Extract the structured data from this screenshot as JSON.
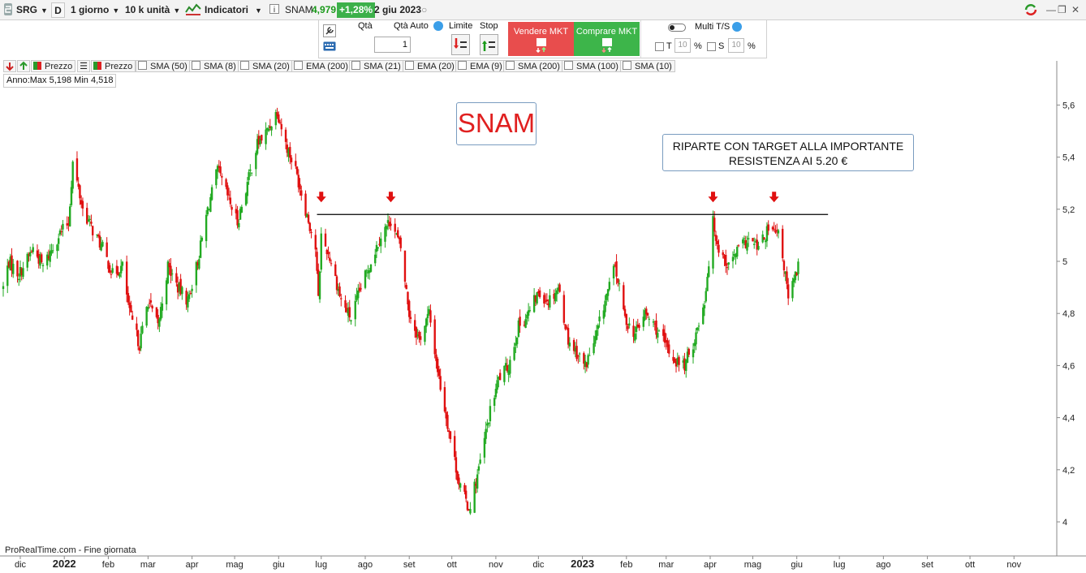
{
  "toolbar": {
    "symbol": "SRG",
    "d_label": "D",
    "timeframe": "1 giorno",
    "units": "10 k unità",
    "indicators": "Indicatori",
    "info_icon": "info-icon",
    "instrument": "SNAM",
    "last_price": "4,979",
    "change": "+1,28%",
    "date": "2 giu 2023"
  },
  "order": {
    "qty_label": "Qtà",
    "qty_auto_label": "Qtà Auto",
    "qty_value": "1",
    "limit_label": "Limite",
    "stop_label": "Stop",
    "sell_label": "Vendere MKT",
    "buy_label": "Comprare MKT",
    "multi_label": "Multi T/S",
    "t_label": "T",
    "t_value": "10",
    "t_unit": "%",
    "s_label": "S",
    "s_value": "10",
    "s_unit": "%"
  },
  "legend": {
    "items": [
      "Prezzo",
      "Prezzo",
      "SMA (50)",
      "SMA (8)",
      "SMA (20)",
      "EMA (200)",
      "SMA (21)",
      "EMA (20)",
      "EMA (9)",
      "SMA (200)",
      "SMA (100)",
      "SMA (10)"
    ]
  },
  "stats": "Anno:Max 5,198 Min 4,518",
  "footer": "ProRealTime.com - Fine giornata",
  "annotations": {
    "title": "SNAM",
    "note_line1": "RIPARTE CON TARGET ALLA IMPORTANTE",
    "note_line2": "RESISTENZA AI 5.20 €"
  },
  "colors": {
    "up": "#22aa22",
    "down": "#e01010",
    "marker": "#e01010",
    "accent": "#e02020"
  },
  "chart_data": {
    "type": "candlestick",
    "y_ticks": [
      "5,6",
      "5,4",
      "5,2",
      "5",
      "4,8",
      "4,6",
      "4,4",
      "4,2",
      "4"
    ],
    "y_tick_values": [
      5.6,
      5.4,
      5.2,
      5.0,
      4.8,
      4.6,
      4.4,
      4.2,
      4.0
    ],
    "ylim": [
      3.93,
      5.72
    ],
    "x_ticks": [
      "dic",
      "2022",
      "feb",
      "mar",
      "apr",
      "mag",
      "giu",
      "lug",
      "ago",
      "set",
      "ott",
      "nov",
      "dic",
      "2023",
      "feb",
      "mar",
      "apr",
      "mag",
      "giu",
      "lug",
      "ago",
      "set",
      "ott",
      "nov"
    ],
    "x_bold": [
      "2022",
      "2023"
    ],
    "resistance": {
      "level": 5.18,
      "from": "2022-06-28",
      "to": "2023-06-23"
    },
    "markers": [
      "2022-07-01",
      "2022-08-19",
      "2023-04-03",
      "2023-05-16"
    ],
    "price_path": [
      [
        "2021-11-19",
        4.9
      ],
      [
        "2021-11-23",
        5.0
      ],
      [
        "2021-11-30",
        4.95
      ],
      [
        "2021-12-10",
        5.05
      ],
      [
        "2021-12-17",
        4.98
      ],
      [
        "2021-12-28",
        5.1
      ],
      [
        "2022-01-04",
        5.15
      ],
      [
        "2022-01-07",
        5.38
      ],
      [
        "2022-01-14",
        5.2
      ],
      [
        "2022-01-21",
        5.12
      ],
      [
        "2022-01-28",
        5.05
      ],
      [
        "2022-02-04",
        4.95
      ],
      [
        "2022-02-11",
        4.98
      ],
      [
        "2022-02-16",
        4.8
      ],
      [
        "2022-02-23",
        4.68
      ],
      [
        "2022-03-01",
        4.85
      ],
      [
        "2022-03-08",
        4.75
      ],
      [
        "2022-03-15",
        4.98
      ],
      [
        "2022-03-22",
        4.9
      ],
      [
        "2022-03-29",
        4.85
      ],
      [
        "2022-04-05",
        5.0
      ],
      [
        "2022-04-12",
        5.2
      ],
      [
        "2022-04-19",
        5.35
      ],
      [
        "2022-04-26",
        5.25
      ],
      [
        "2022-05-03",
        5.15
      ],
      [
        "2022-05-10",
        5.3
      ],
      [
        "2022-05-17",
        5.45
      ],
      [
        "2022-05-24",
        5.5
      ],
      [
        "2022-05-31",
        5.58
      ],
      [
        "2022-06-06",
        5.45
      ],
      [
        "2022-06-13",
        5.35
      ],
      [
        "2022-06-20",
        5.2
      ],
      [
        "2022-06-27",
        5.05
      ],
      [
        "2022-06-29",
        4.85
      ],
      [
        "2022-07-01",
        5.1
      ],
      [
        "2022-07-08",
        5.0
      ],
      [
        "2022-07-15",
        4.85
      ],
      [
        "2022-07-22",
        4.78
      ],
      [
        "2022-07-29",
        4.9
      ],
      [
        "2022-08-05",
        5.0
      ],
      [
        "2022-08-12",
        5.1
      ],
      [
        "2022-08-19",
        5.16
      ],
      [
        "2022-08-26",
        5.05
      ],
      [
        "2022-09-01",
        4.8
      ],
      [
        "2022-09-08",
        4.7
      ],
      [
        "2022-09-15",
        4.8
      ],
      [
        "2022-09-22",
        4.55
      ],
      [
        "2022-09-29",
        4.35
      ],
      [
        "2022-10-06",
        4.15
      ],
      [
        "2022-10-13",
        4.05
      ],
      [
        "2022-10-20",
        4.2
      ],
      [
        "2022-10-27",
        4.4
      ],
      [
        "2022-11-03",
        4.55
      ],
      [
        "2022-11-10",
        4.6
      ],
      [
        "2022-11-17",
        4.75
      ],
      [
        "2022-11-24",
        4.8
      ],
      [
        "2022-12-01",
        4.88
      ],
      [
        "2022-12-08",
        4.85
      ],
      [
        "2022-12-15",
        4.9
      ],
      [
        "2022-12-22",
        4.7
      ],
      [
        "2023-01-03",
        4.6
      ],
      [
        "2023-01-10",
        4.7
      ],
      [
        "2023-01-17",
        4.85
      ],
      [
        "2023-01-24",
        4.98
      ],
      [
        "2023-01-31",
        4.78
      ],
      [
        "2023-02-07",
        4.72
      ],
      [
        "2023-02-14",
        4.8
      ],
      [
        "2023-02-21",
        4.75
      ],
      [
        "2023-02-28",
        4.68
      ],
      [
        "2023-03-07",
        4.62
      ],
      [
        "2023-03-14",
        4.6
      ],
      [
        "2023-03-21",
        4.7
      ],
      [
        "2023-03-28",
        4.85
      ],
      [
        "2023-04-03",
        5.15
      ],
      [
        "2023-04-07",
        5.05
      ],
      [
        "2023-04-14",
        4.98
      ],
      [
        "2023-04-21",
        5.05
      ],
      [
        "2023-04-28",
        5.08
      ],
      [
        "2023-05-05",
        5.05
      ],
      [
        "2023-05-12",
        5.12
      ],
      [
        "2023-05-19",
        5.1
      ],
      [
        "2023-05-24",
        4.95
      ],
      [
        "2023-05-26",
        4.85
      ],
      [
        "2023-06-02",
        4.98
      ]
    ]
  }
}
